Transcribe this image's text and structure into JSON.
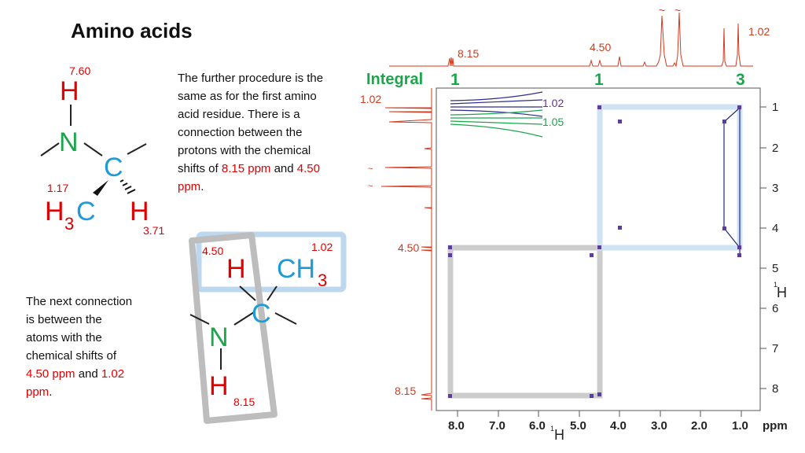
{
  "slide": {
    "title": "Amino acids",
    "text_upper": {
      "line1": "The further procedure is the",
      "line2": "same as for the first amino",
      "line3": "acid residue. There is a",
      "line4": "connection between the",
      "line5a": "protons with the chemical",
      "line5b": "shifts of ",
      "v1": "8.15 ppm",
      "mid": " and ",
      "v2": "4.50",
      "line6a": "ppm",
      "line6b": "."
    },
    "text_lower": {
      "line1": "The next connection",
      "line2": "is between the",
      "line3": "atoms with the",
      "line4": "chemical shifts of",
      "v1": "4.50 ppm",
      "mid": " and ",
      "v2": "1.02",
      "line6a": "ppm",
      "line6b": "."
    }
  },
  "molecule_top": {
    "h_top": "H",
    "shift_h_top": "7.60",
    "n": "N",
    "c": "C",
    "h3": "H",
    "sub3": "3",
    "c_methyl": "C",
    "shift_ch3": "1.17",
    "h_right": "H",
    "shift_h_right": "3.71"
  },
  "molecule_bottom": {
    "shift_ha": "4.50",
    "h_alpha": "H",
    "shift_ch3": "1.02",
    "c_methyl": "CH",
    "sub3": "3",
    "c": "C",
    "n": "N",
    "h_bottom": "H",
    "shift_nh": "8.15"
  },
  "spectrum": {
    "integral_label": "Integral",
    "integrals": [
      "1",
      "1",
      "3"
    ],
    "peak_labels_top": [
      "8.15",
      "4.50",
      "1.02"
    ],
    "left_labels": [
      "1.02",
      "4.50",
      "8.15"
    ],
    "expansion_labels": [
      "1.02",
      "1.05"
    ],
    "y_ticks": [
      "1",
      "2",
      "3",
      "4",
      "5",
      "6",
      "7",
      "8"
    ],
    "x_ticks": [
      "8.0",
      "7.0",
      "6.0",
      "5.0",
      "4.0",
      "3.0",
      "2.0",
      "1.0"
    ],
    "x_unit": "ppm",
    "y_axis_label": "H",
    "y_axis_sup": "1",
    "x_axis_label": "H",
    "x_axis_sup": "1",
    "tilde": "~",
    "colors": {
      "spectrum_red": "#d23a1e",
      "integral_green": "#1aa64a",
      "highlight_blue": "#bcd7ee",
      "highlight_grey": "#bdbdbd",
      "label_purple": "#6a2c9a"
    }
  }
}
